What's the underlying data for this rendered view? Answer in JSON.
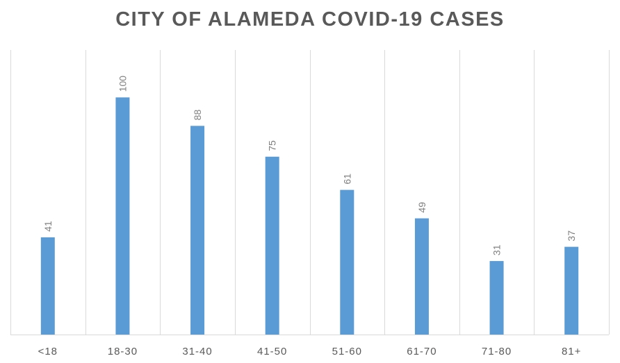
{
  "chart_data": {
    "type": "bar",
    "title": "CITY OF ALAMEDA COVID-19 CASES",
    "categories": [
      "<18",
      "18-30",
      "31-40",
      "41-50",
      "51-60",
      "61-70",
      "71-80",
      "81+"
    ],
    "values": [
      41,
      100,
      88,
      75,
      61,
      49,
      31,
      37
    ],
    "xlabel": "",
    "ylabel": "",
    "ylim": [
      0,
      120
    ],
    "grid": "vertical category separators",
    "legend": "none",
    "bar_color": "#5b9bd5",
    "label_color": "#7f7f7f"
  }
}
